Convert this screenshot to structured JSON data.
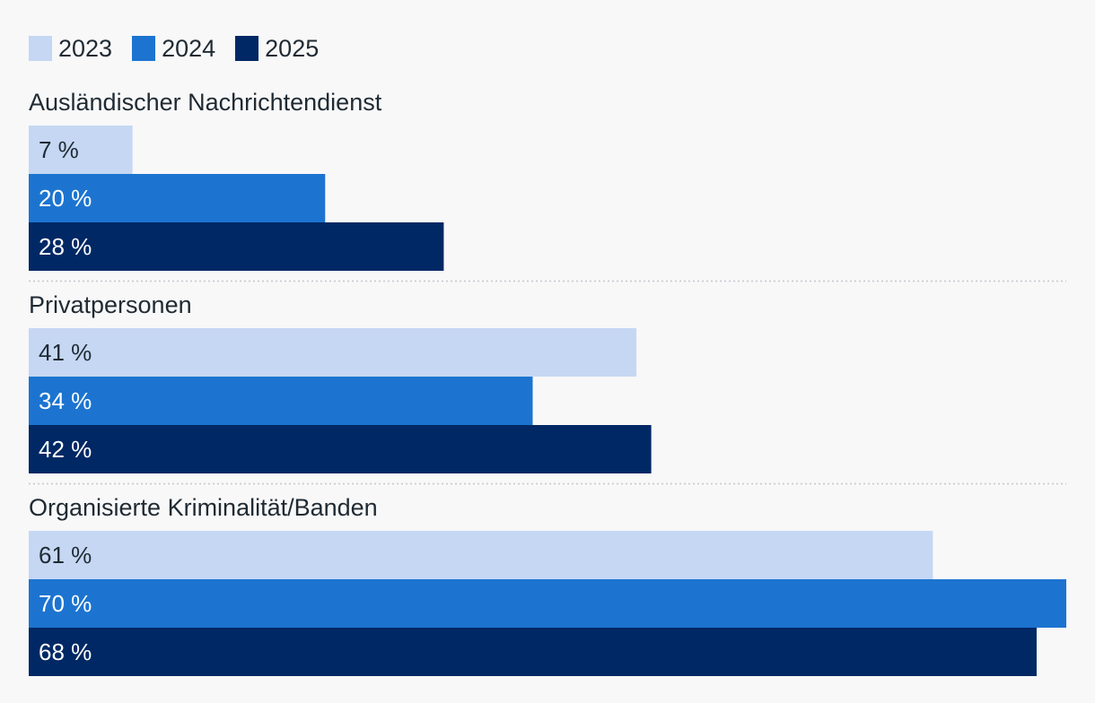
{
  "chart_data": {
    "type": "bar",
    "orientation": "horizontal",
    "grouped": true,
    "categories": [
      "Ausländischer Nachrichtendienst",
      "Privatpersonen",
      "Organisierte Kriminalität/Banden"
    ],
    "series": [
      {
        "name": "2023",
        "color": "#c5d7f3",
        "label_color": "#1f2a33",
        "values": [
          7,
          41,
          61
        ]
      },
      {
        "name": "2024",
        "color": "#1c74d0",
        "label_color": "#ffffff",
        "values": [
          20,
          34,
          70
        ]
      },
      {
        "name": "2025",
        "color": "#002864",
        "label_color": "#ffffff",
        "values": [
          28,
          42,
          68
        ]
      }
    ],
    "value_suffix": " %",
    "xlim": [
      0,
      70
    ],
    "legend_position": "top-left",
    "grid": false,
    "title": "",
    "xlabel": "",
    "ylabel": ""
  }
}
